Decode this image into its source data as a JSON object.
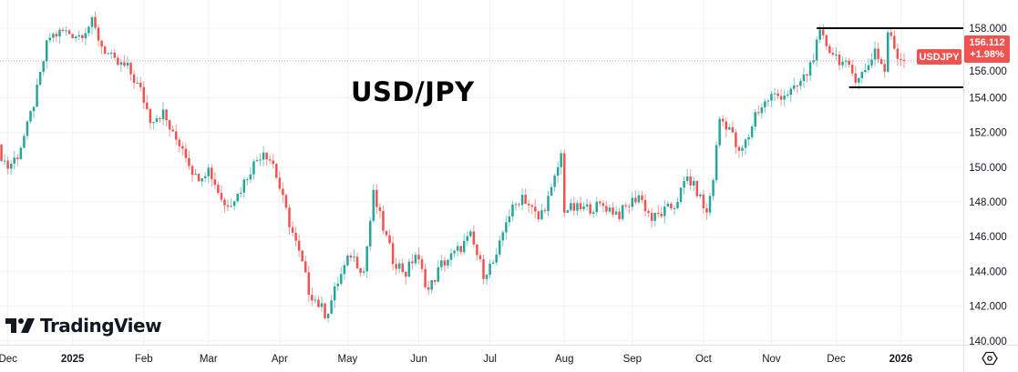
{
  "chart_data": {
    "type": "candlestick",
    "title": "USD/JPY",
    "symbol": "USDJPY",
    "last_price": "156.112",
    "change_pct": "+1.98%",
    "ylim": [
      139.6,
      159.2
    ],
    "y_ticks": [
      "140.000",
      "142.000",
      "144.000",
      "146.000",
      "148.000",
      "150.000",
      "152.000",
      "154.000",
      "156.000",
      "158.000"
    ],
    "y_tick_values": [
      140,
      142,
      144,
      146,
      148,
      150,
      152,
      154,
      156,
      158
    ],
    "x_ticks": [
      {
        "label": "Dec",
        "day": 3,
        "bold": false
      },
      {
        "label": "2025",
        "day": 23,
        "bold": true
      },
      {
        "label": "Feb",
        "day": 45,
        "bold": false
      },
      {
        "label": "Mar",
        "day": 65,
        "bold": false
      },
      {
        "label": "Apr",
        "day": 87,
        "bold": false
      },
      {
        "label": "May",
        "day": 108,
        "bold": false
      },
      {
        "label": "Jun",
        "day": 130,
        "bold": false
      },
      {
        "label": "Jul",
        "day": 152,
        "bold": false
      },
      {
        "label": "Aug",
        "day": 175,
        "bold": false
      },
      {
        "label": "Sep",
        "day": 196,
        "bold": false
      },
      {
        "label": "Oct",
        "day": 218,
        "bold": false
      },
      {
        "label": "Nov",
        "day": 239,
        "bold": false
      },
      {
        "label": "Dec",
        "day": 259,
        "bold": false
      },
      {
        "label": "2026",
        "day": 279,
        "bold": true
      }
    ],
    "approx_close_path": [
      [
        0,
        151.0
      ],
      [
        3,
        150.0
      ],
      [
        6,
        150.7
      ],
      [
        9,
        152.3
      ],
      [
        12,
        154.4
      ],
      [
        15,
        157.0
      ],
      [
        16,
        157.5
      ],
      [
        20,
        157.8
      ],
      [
        25,
        157.6
      ],
      [
        29,
        158.3
      ],
      [
        32,
        157.0
      ],
      [
        36,
        156.0
      ],
      [
        40,
        155.7
      ],
      [
        44,
        154.4
      ],
      [
        47,
        152.8
      ],
      [
        51,
        153.1
      ],
      [
        54,
        151.8
      ],
      [
        57,
        151.2
      ],
      [
        61,
        149.4
      ],
      [
        65,
        149.9
      ],
      [
        70,
        147.8
      ],
      [
        74,
        148.4
      ],
      [
        78,
        149.9
      ],
      [
        82,
        151.0
      ],
      [
        85,
        150.2
      ],
      [
        88,
        148.1
      ],
      [
        90,
        146.8
      ],
      [
        94,
        144.4
      ],
      [
        96,
        142.9
      ],
      [
        101,
        141.6
      ],
      [
        102,
        141.8
      ],
      [
        105,
        143.4
      ],
      [
        109,
        145.0
      ],
      [
        113,
        144.0
      ],
      [
        116,
        148.4
      ],
      [
        119,
        146.5
      ],
      [
        122,
        144.7
      ],
      [
        126,
        143.9
      ],
      [
        129,
        145.0
      ],
      [
        133,
        142.9
      ],
      [
        137,
        144.4
      ],
      [
        141,
        145.0
      ],
      [
        146,
        146.0
      ],
      [
        150,
        143.9
      ],
      [
        154,
        144.7
      ],
      [
        157,
        147.0
      ],
      [
        162,
        148.4
      ],
      [
        167,
        147.0
      ],
      [
        171,
        148.6
      ],
      [
        174,
        150.7
      ],
      [
        175,
        147.6
      ],
      [
        181,
        147.6
      ],
      [
        187,
        147.8
      ],
      [
        192,
        147.3
      ],
      [
        198,
        148.4
      ],
      [
        202,
        147.0
      ],
      [
        209,
        147.8
      ],
      [
        213,
        149.4
      ],
      [
        216,
        148.6
      ],
      [
        219,
        147.3
      ],
      [
        221,
        149.4
      ],
      [
        223,
        152.8
      ],
      [
        226,
        152.3
      ],
      [
        229,
        150.7
      ],
      [
        232,
        151.8
      ],
      [
        234,
        153.1
      ],
      [
        239,
        154.1
      ],
      [
        241,
        154.1
      ],
      [
        246,
        154.4
      ],
      [
        250,
        155.4
      ],
      [
        253,
        157.0
      ],
      [
        254,
        157.6
      ],
      [
        257,
        156.8
      ],
      [
        261,
        156.0
      ],
      [
        265,
        155.2
      ],
      [
        268,
        155.5
      ],
      [
        271,
        156.8
      ],
      [
        274,
        155.5
      ],
      [
        275,
        157.8
      ],
      [
        278,
        156.4
      ],
      [
        280,
        156.1
      ]
    ],
    "levels": [
      {
        "name": "resistance",
        "value": 158.0,
        "from_day": 253
      },
      {
        "name": "support",
        "value": 154.6,
        "from_day": 263
      }
    ],
    "colors": {
      "up": "#26a69a",
      "down": "#ef5350",
      "level": "#000000",
      "grid": "#f0f3fa"
    },
    "watermark": "TradingView"
  }
}
